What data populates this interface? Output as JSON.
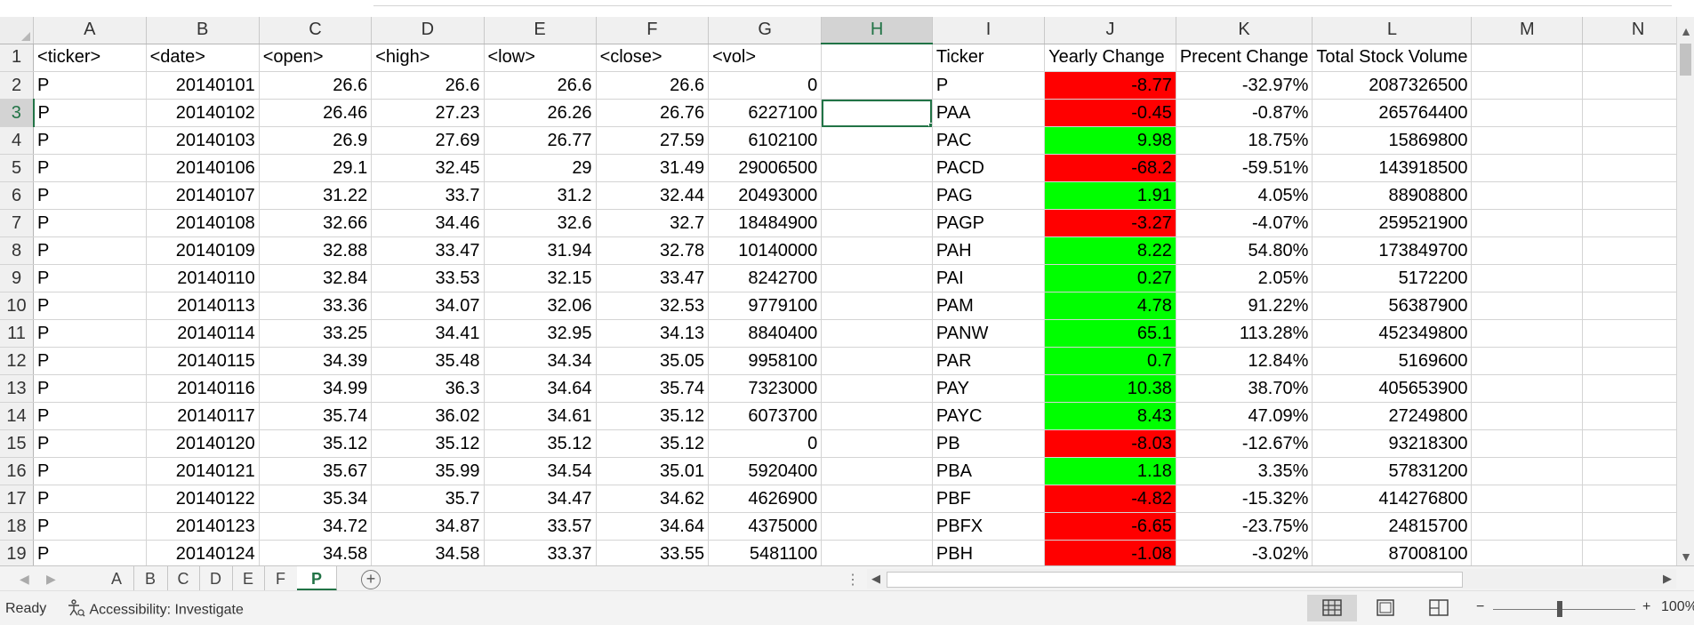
{
  "columns": [
    "A",
    "B",
    "C",
    "D",
    "E",
    "F",
    "G",
    "H",
    "I",
    "J",
    "K",
    "L",
    "M",
    "N"
  ],
  "rows": [
    [
      "<ticker>",
      "<date>",
      "<open>",
      "<high>",
      "<low>",
      "<close>",
      "<vol>",
      "",
      "Ticker",
      "Yearly Change",
      "Precent Change",
      "Total Stock Volume",
      "",
      ""
    ],
    [
      "P",
      "20140101",
      "26.6",
      "26.6",
      "26.6",
      "26.6",
      "0",
      "",
      "P",
      "-8.77",
      "-32.97%",
      "2087326500",
      "",
      ""
    ],
    [
      "P",
      "20140102",
      "26.46",
      "27.23",
      "26.26",
      "26.76",
      "6227100",
      "",
      "PAA",
      "-0.45",
      "-0.87%",
      "265764400",
      "",
      ""
    ],
    [
      "P",
      "20140103",
      "26.9",
      "27.69",
      "26.77",
      "27.59",
      "6102100",
      "",
      "PAC",
      "9.98",
      "18.75%",
      "15869800",
      "",
      ""
    ],
    [
      "P",
      "20140106",
      "29.1",
      "32.45",
      "29",
      "31.49",
      "29006500",
      "",
      "PACD",
      "-68.2",
      "-59.51%",
      "143918500",
      "",
      ""
    ],
    [
      "P",
      "20140107",
      "31.22",
      "33.7",
      "31.2",
      "32.44",
      "20493000",
      "",
      "PAG",
      "1.91",
      "4.05%",
      "88908800",
      "",
      ""
    ],
    [
      "P",
      "20140108",
      "32.66",
      "34.46",
      "32.6",
      "32.7",
      "18484900",
      "",
      "PAGP",
      "-3.27",
      "-4.07%",
      "259521900",
      "",
      ""
    ],
    [
      "P",
      "20140109",
      "32.88",
      "33.47",
      "31.94",
      "32.78",
      "10140000",
      "",
      "PAH",
      "8.22",
      "54.80%",
      "173849700",
      "",
      ""
    ],
    [
      "P",
      "20140110",
      "32.84",
      "33.53",
      "32.15",
      "33.47",
      "8242700",
      "",
      "PAI",
      "0.27",
      "2.05%",
      "5172200",
      "",
      ""
    ],
    [
      "P",
      "20140113",
      "33.36",
      "34.07",
      "32.06",
      "32.53",
      "9779100",
      "",
      "PAM",
      "4.78",
      "91.22%",
      "56387900",
      "",
      ""
    ],
    [
      "P",
      "20140114",
      "33.25",
      "34.41",
      "32.95",
      "34.13",
      "8840400",
      "",
      "PANW",
      "65.1",
      "113.28%",
      "452349800",
      "",
      ""
    ],
    [
      "P",
      "20140115",
      "34.39",
      "35.48",
      "34.34",
      "35.05",
      "9958100",
      "",
      "PAR",
      "0.7",
      "12.84%",
      "5169600",
      "",
      ""
    ],
    [
      "P",
      "20140116",
      "34.99",
      "36.3",
      "34.64",
      "35.74",
      "7323000",
      "",
      "PAY",
      "10.38",
      "38.70%",
      "405653900",
      "",
      ""
    ],
    [
      "P",
      "20140117",
      "35.74",
      "36.02",
      "34.61",
      "35.12",
      "6073700",
      "",
      "PAYC",
      "8.43",
      "47.09%",
      "27249800",
      "",
      ""
    ],
    [
      "P",
      "20140120",
      "35.12",
      "35.12",
      "35.12",
      "35.12",
      "0",
      "",
      "PB",
      "-8.03",
      "-12.67%",
      "93218300",
      "",
      ""
    ],
    [
      "P",
      "20140121",
      "35.67",
      "35.99",
      "34.54",
      "35.01",
      "5920400",
      "",
      "PBA",
      "1.18",
      "3.35%",
      "57831200",
      "",
      ""
    ],
    [
      "P",
      "20140122",
      "35.34",
      "35.7",
      "34.47",
      "34.62",
      "4626900",
      "",
      "PBF",
      "-4.82",
      "-15.32%",
      "414276800",
      "",
      ""
    ],
    [
      "P",
      "20140123",
      "34.72",
      "34.87",
      "33.57",
      "34.64",
      "4375000",
      "",
      "PBFX",
      "-6.65",
      "-23.75%",
      "24815700",
      "",
      ""
    ],
    [
      "P",
      "20140124",
      "34.58",
      "34.58",
      "33.37",
      "33.55",
      "5481100",
      "",
      "PBH",
      "-1.08",
      "-3.02%",
      "87008100",
      "",
      ""
    ]
  ],
  "sheet_tabs": [
    "A",
    "B",
    "C",
    "D",
    "E",
    "F",
    "P"
  ],
  "active_tab": "P",
  "status": {
    "ready": "Ready",
    "accessibility": "Accessibility: Investigate",
    "zoom": "100%"
  },
  "colors": {
    "positive": "#00ff00",
    "negative": "#ff0000",
    "accent": "#217346"
  }
}
